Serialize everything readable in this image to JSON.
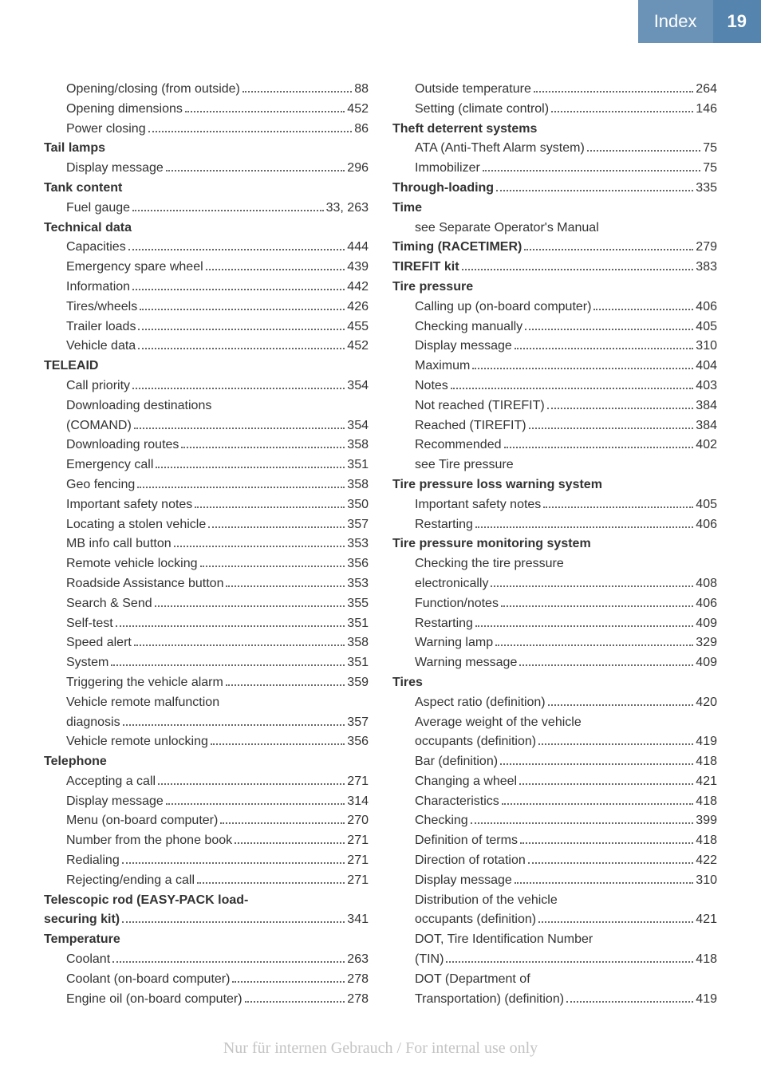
{
  "header": {
    "title": "Index",
    "page": "19",
    "title_bg": "#6b93b7",
    "page_bg": "#5584ae",
    "text_color": "#ffffff"
  },
  "left_column": [
    {
      "label": "Opening/closing (from outside)",
      "page": "88",
      "sub": true
    },
    {
      "label": "Opening dimensions",
      "page": "452",
      "sub": true
    },
    {
      "label": "Power closing",
      "page": "86",
      "sub": true
    },
    {
      "label": "Tail lamps",
      "bold": true
    },
    {
      "label": "Display message",
      "page": "296",
      "sub": true
    },
    {
      "label": "Tank content",
      "bold": true
    },
    {
      "label": "Fuel gauge",
      "page": "33, 263",
      "sub": true
    },
    {
      "label": "Technical data",
      "bold": true
    },
    {
      "label": "Capacities",
      "page": "444",
      "sub": true
    },
    {
      "label": "Emergency spare wheel",
      "page": "439",
      "sub": true
    },
    {
      "label": "Information",
      "page": "442",
      "sub": true
    },
    {
      "label": "Tires/wheels",
      "page": "426",
      "sub": true
    },
    {
      "label": "Trailer loads",
      "page": "455",
      "sub": true
    },
    {
      "label": "Vehicle data",
      "page": "452",
      "sub": true
    },
    {
      "label": "TELEAID",
      "bold": true
    },
    {
      "label": "Call priority",
      "page": "354",
      "sub": true
    },
    {
      "label": "Downloading destinations",
      "sub": true,
      "nowrap": true
    },
    {
      "label": "(COMAND)",
      "page": "354",
      "sub": true
    },
    {
      "label": "Downloading routes",
      "page": "358",
      "sub": true
    },
    {
      "label": "Emergency call",
      "page": "351",
      "sub": true
    },
    {
      "label": "Geo fencing",
      "page": "358",
      "sub": true
    },
    {
      "label": "Important safety notes",
      "page": "350",
      "sub": true
    },
    {
      "label": "Locating a stolen vehicle",
      "page": "357",
      "sub": true
    },
    {
      "label": "MB info call button",
      "page": "353",
      "sub": true
    },
    {
      "label": "Remote vehicle locking",
      "page": "356",
      "sub": true
    },
    {
      "label": "Roadside Assistance button",
      "page": "353",
      "sub": true
    },
    {
      "label": "Search & Send",
      "page": "355",
      "sub": true
    },
    {
      "label": "Self-test",
      "page": "351",
      "sub": true
    },
    {
      "label": "Speed alert",
      "page": "358",
      "sub": true
    },
    {
      "label": "System",
      "page": "351",
      "sub": true
    },
    {
      "label": "Triggering the vehicle alarm",
      "page": "359",
      "sub": true
    },
    {
      "label": "Vehicle remote malfunction",
      "sub": true,
      "nowrap": true
    },
    {
      "label": "diagnosis",
      "page": "357",
      "sub": true
    },
    {
      "label": "Vehicle remote unlocking",
      "page": "356",
      "sub": true
    },
    {
      "label": "Telephone",
      "bold": true
    },
    {
      "label": "Accepting a call",
      "page": "271",
      "sub": true
    },
    {
      "label": "Display message",
      "page": "314",
      "sub": true
    },
    {
      "label": "Menu (on-board computer)",
      "page": "270",
      "sub": true
    },
    {
      "label": "Number from the phone book",
      "page": "271",
      "sub": true
    },
    {
      "label": "Redialing",
      "page": "271",
      "sub": true
    },
    {
      "label": "Rejecting/ending a call",
      "page": "271",
      "sub": true
    },
    {
      "label": "Telescopic rod (EASY-PACK load-",
      "bold": true,
      "nowrap": true
    },
    {
      "label": "securing kit)",
      "page": "341",
      "bold": true
    },
    {
      "label": "Temperature",
      "bold": true
    },
    {
      "label": "Coolant",
      "page": "263",
      "sub": true
    },
    {
      "label": "Coolant (on-board computer)",
      "page": "278",
      "sub": true
    },
    {
      "label": "Engine oil (on-board computer)",
      "page": "278",
      "sub": true
    }
  ],
  "right_column": [
    {
      "label": "Outside temperature",
      "page": "264",
      "sub": true
    },
    {
      "label": "Setting (climate control)",
      "page": "146",
      "sub": true
    },
    {
      "label": "Theft deterrent systems",
      "bold": true
    },
    {
      "label": "ATA (Anti-Theft Alarm system)",
      "page": "75",
      "sub": true
    },
    {
      "label": "Immobilizer",
      "page": "75",
      "sub": true
    },
    {
      "label": "Through-loading",
      "page": "335",
      "bold": true
    },
    {
      "label": "Time",
      "bold": true
    },
    {
      "label": "see Separate Operator's Manual",
      "sub": true,
      "nowrap": true
    },
    {
      "label": "Timing (RACETIMER)",
      "page": "279",
      "bold": true
    },
    {
      "label": "TIREFIT kit",
      "page": "383",
      "bold": true
    },
    {
      "label": "Tire pressure",
      "bold": true
    },
    {
      "label": "Calling up (on-board computer)",
      "page": "406",
      "sub": true
    },
    {
      "label": "Checking manually",
      "page": "405",
      "sub": true
    },
    {
      "label": "Display message",
      "page": "310",
      "sub": true
    },
    {
      "label": "Maximum",
      "page": "404",
      "sub": true
    },
    {
      "label": "Notes",
      "page": "403",
      "sub": true
    },
    {
      "label": "Not reached (TIREFIT)",
      "page": "384",
      "sub": true
    },
    {
      "label": "Reached (TIREFIT)",
      "page": "384",
      "sub": true
    },
    {
      "label": "Recommended",
      "page": "402",
      "sub": true
    },
    {
      "label": "see Tire pressure",
      "sub": true,
      "nowrap": true
    },
    {
      "label": "Tire pressure loss warning system",
      "bold": true
    },
    {
      "label": "Important safety notes",
      "page": "405",
      "sub": true
    },
    {
      "label": "Restarting",
      "page": "406",
      "sub": true
    },
    {
      "label": "Tire pressure monitoring system",
      "bold": true
    },
    {
      "label": "Checking the tire pressure",
      "sub": true,
      "nowrap": true
    },
    {
      "label": "electronically",
      "page": "408",
      "sub": true
    },
    {
      "label": "Function/notes",
      "page": "406",
      "sub": true
    },
    {
      "label": "Restarting",
      "page": "409",
      "sub": true
    },
    {
      "label": "Warning lamp",
      "page": "329",
      "sub": true
    },
    {
      "label": "Warning message",
      "page": "409",
      "sub": true
    },
    {
      "label": "Tires",
      "bold": true
    },
    {
      "label": "Aspect ratio (definition)",
      "page": "420",
      "sub": true
    },
    {
      "label": "Average weight of the vehicle",
      "sub": true,
      "nowrap": true
    },
    {
      "label": "occupants (definition)",
      "page": "419",
      "sub": true
    },
    {
      "label": "Bar (definition)",
      "page": "418",
      "sub": true
    },
    {
      "label": "Changing a wheel",
      "page": "421",
      "sub": true
    },
    {
      "label": "Characteristics",
      "page": "418",
      "sub": true
    },
    {
      "label": "Checking",
      "page": "399",
      "sub": true
    },
    {
      "label": "Definition of terms",
      "page": "418",
      "sub": true
    },
    {
      "label": "Direction of rotation",
      "page": "422",
      "sub": true
    },
    {
      "label": "Display message",
      "page": "310",
      "sub": true
    },
    {
      "label": "Distribution of the vehicle",
      "sub": true,
      "nowrap": true
    },
    {
      "label": "occupants (definition)",
      "page": "421",
      "sub": true
    },
    {
      "label": "DOT, Tire Identification Number",
      "sub": true,
      "nowrap": true
    },
    {
      "label": "(TIN)",
      "page": "418",
      "sub": true
    },
    {
      "label": "DOT (Department of",
      "sub": true,
      "nowrap": true
    },
    {
      "label": "Transportation) (definition)",
      "page": "419",
      "sub": true
    }
  ],
  "footer": "Nur für internen Gebrauch / For internal use only"
}
